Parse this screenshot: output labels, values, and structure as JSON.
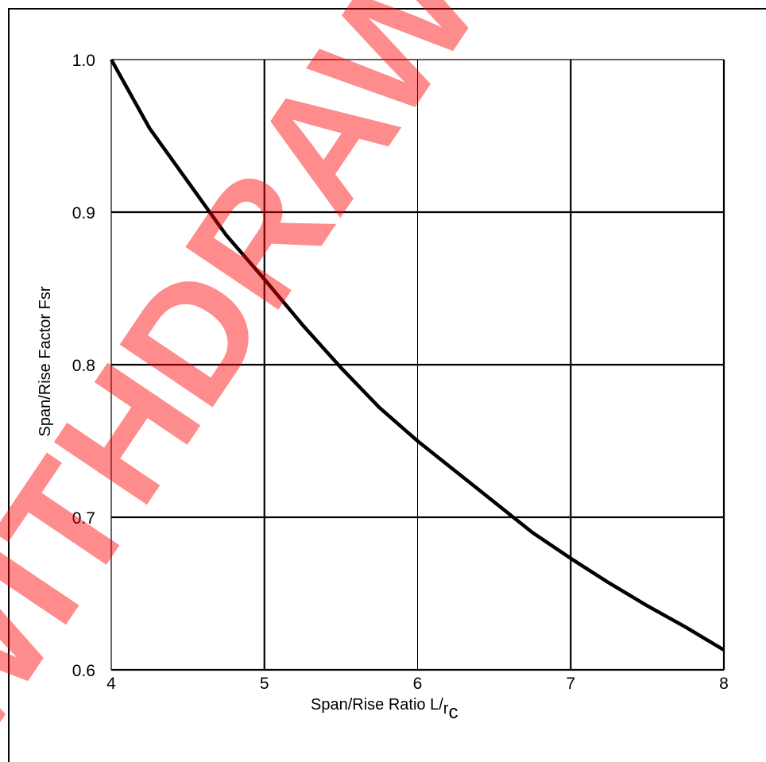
{
  "chart_data": {
    "type": "line",
    "xlabel": "Span/Rise Ratio L/",
    "xlabel_sub": "r",
    "xlabel_subsub": "c",
    "ylabel": "Span/Rise Factor  Fsr",
    "xlim": [
      4,
      8
    ],
    "ylim": [
      0.6,
      1.0
    ],
    "x_ticks": [
      4,
      5,
      6,
      7,
      8
    ],
    "x_tick_labels": [
      "4",
      "5",
      "6",
      "7",
      "8"
    ],
    "y_ticks": [
      0.6,
      0.7,
      0.8,
      0.9,
      1.0
    ],
    "y_tick_labels": [
      "0.6",
      "0.7",
      "0.8",
      "0.9",
      "1.0"
    ],
    "grid": true,
    "series": [
      {
        "x": [
          4.0,
          4.25,
          4.5,
          4.75,
          5.0,
          5.25,
          5.5,
          5.75,
          6.0,
          6.25,
          6.5,
          6.75,
          7.0,
          7.25,
          7.5,
          7.75,
          8.0
        ],
        "y": [
          1.0,
          0.955,
          0.92,
          0.885,
          0.856,
          0.826,
          0.798,
          0.772,
          0.75,
          0.73,
          0.71,
          0.69,
          0.673,
          0.657,
          0.642,
          0.628,
          0.613
        ],
        "color": "#000000"
      }
    ],
    "watermark": "WITHDRAWN",
    "watermark_color": "#ff0000"
  }
}
